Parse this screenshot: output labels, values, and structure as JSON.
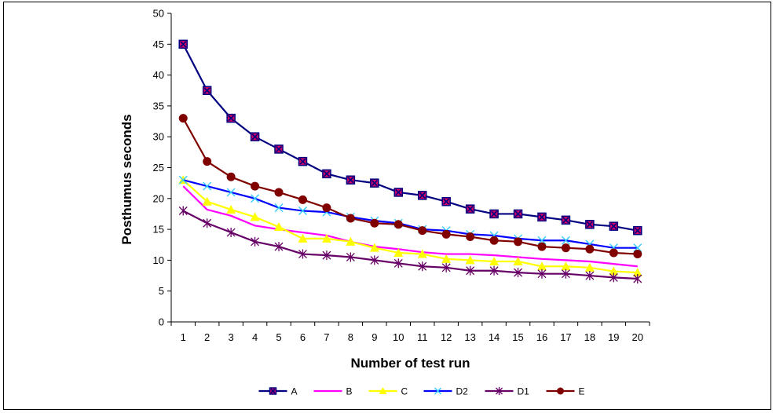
{
  "chart_data": {
    "type": "line",
    "title": "",
    "xlabel": "Number of test run",
    "ylabel": "Posthumus seconds",
    "ylim": [
      0,
      50
    ],
    "yticks": [
      "0",
      "5",
      "10",
      "15",
      "20",
      "25",
      "30",
      "35",
      "40",
      "45",
      "50"
    ],
    "categories": [
      "1",
      "2",
      "3",
      "4",
      "5",
      "6",
      "7",
      "8",
      "9",
      "10",
      "11",
      "12",
      "13",
      "14",
      "15",
      "16",
      "17",
      "18",
      "19",
      "20"
    ],
    "grid": false,
    "legend_position": "bottom",
    "series": [
      {
        "name": "A",
        "color": "#000080",
        "marker": "square-x",
        "marker_fill": "#cc0066",
        "values": [
          45,
          37.5,
          33,
          30,
          28,
          26,
          24,
          23,
          22.5,
          21,
          20.5,
          19.5,
          18.3,
          17.5,
          17.5,
          17,
          16.5,
          15.8,
          15.5,
          14.8
        ]
      },
      {
        "name": "B",
        "color": "#ff00ff",
        "marker": "none",
        "values": [
          22,
          18.2,
          17.2,
          15.6,
          15,
          14.5,
          14,
          13,
          12.2,
          11.8,
          11.3,
          11,
          11,
          10.8,
          10.5,
          10.2,
          10,
          9.8,
          9.4,
          9
        ]
      },
      {
        "name": "C",
        "color": "#ffff00",
        "marker": "triangle",
        "values": [
          23,
          19.5,
          18.2,
          17,
          15.4,
          13.5,
          13.5,
          13,
          12,
          11.2,
          11,
          10.2,
          10,
          9.8,
          9.8,
          9,
          9,
          8.8,
          8.2,
          8
        ]
      },
      {
        "name": "D2",
        "color": "#0000ff",
        "marker": "x",
        "marker_color": "#33ccff",
        "values": [
          23,
          22,
          21,
          20,
          18.5,
          18,
          17.8,
          17,
          16.4,
          16,
          15,
          14.8,
          14.2,
          14,
          13.5,
          13.2,
          13.2,
          12.6,
          12,
          12
        ]
      },
      {
        "name": "D1",
        "color": "#660066",
        "marker": "star",
        "values": [
          18,
          16,
          14.5,
          13,
          12.2,
          11,
          10.8,
          10.5,
          10,
          9.5,
          9,
          8.8,
          8.3,
          8.3,
          8,
          7.8,
          7.8,
          7.5,
          7.2,
          7
        ]
      },
      {
        "name": "E",
        "color": "#800000",
        "marker": "circle",
        "values": [
          33,
          26,
          23.5,
          22,
          21,
          19.8,
          18.5,
          16.8,
          16,
          15.8,
          14.8,
          14.2,
          13.8,
          13.2,
          13,
          12.2,
          12,
          11.8,
          11.2,
          11
        ]
      }
    ]
  }
}
